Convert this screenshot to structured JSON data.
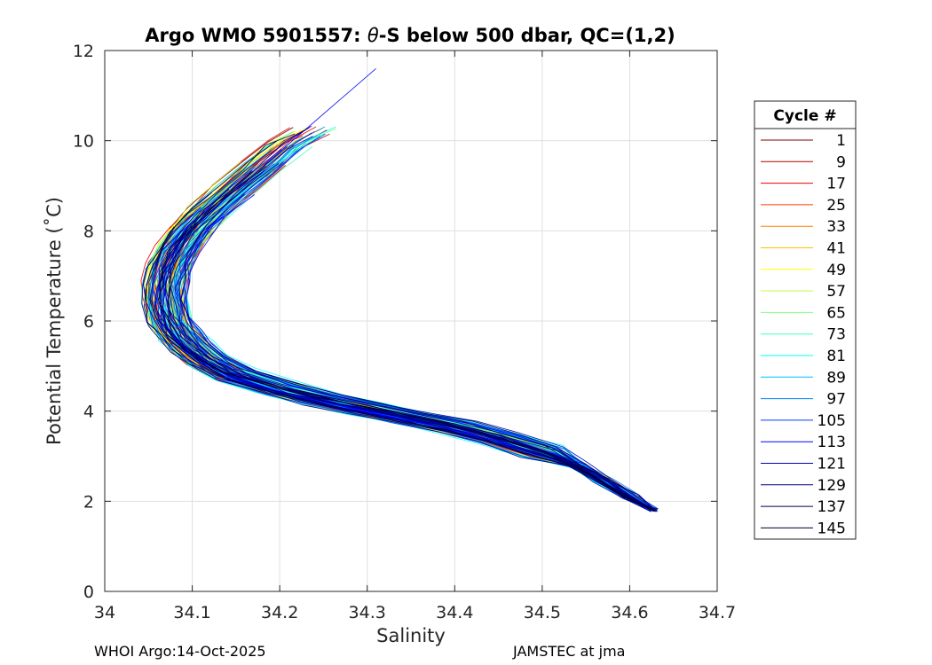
{
  "chart_data": {
    "type": "line",
    "title_prefix": "Argo WMO 5901557: ",
    "title_theta": "θ",
    "title_suffix": "-S below 500 dbar,  QC=(1,2)",
    "xlabel": "Salinity",
    "ylabel": "Potential Temperature (˚C)",
    "xlim": [
      34.0,
      34.7
    ],
    "ylim": [
      0,
      12
    ],
    "xticks": [
      "34",
      "34.1",
      "34.2",
      "34.3",
      "34.4",
      "34.5",
      "34.6",
      "34.7"
    ],
    "xtick_values": [
      34.0,
      34.1,
      34.2,
      34.3,
      34.4,
      34.5,
      34.6,
      34.7
    ],
    "yticks": [
      "0",
      "2",
      "4",
      "6",
      "8",
      "10",
      "12"
    ],
    "ytick_values": [
      0,
      2,
      4,
      6,
      8,
      10,
      12
    ],
    "grid": true,
    "legend_position": "right-outside",
    "legend_title": "Cycle #",
    "colormap": [
      "#800000",
      "#b40000",
      "#e60000",
      "#ff3a00",
      "#ff7f00",
      "#ffbf00",
      "#ffff00",
      "#bfff40",
      "#7fff7f",
      "#40ffbf",
      "#00ffff",
      "#00bfff",
      "#007fff",
      "#0040ff",
      "#0000ff",
      "#0000c0",
      "#000080",
      "#000050",
      "#000030"
    ],
    "series": [
      {
        "name": "1"
      },
      {
        "name": "9"
      },
      {
        "name": "17"
      },
      {
        "name": "25"
      },
      {
        "name": "33"
      },
      {
        "name": "41"
      },
      {
        "name": "49"
      },
      {
        "name": "57"
      },
      {
        "name": "65"
      },
      {
        "name": "73"
      },
      {
        "name": "81"
      },
      {
        "name": "89"
      },
      {
        "name": "97"
      },
      {
        "name": "105"
      },
      {
        "name": "113"
      },
      {
        "name": "121"
      },
      {
        "name": "129"
      },
      {
        "name": "137"
      },
      {
        "name": "145"
      }
    ],
    "base_profile": {
      "salinity": [
        34.628,
        34.6,
        34.57,
        34.54,
        34.5,
        34.45,
        34.4,
        34.35,
        34.3,
        34.25,
        34.2,
        34.15,
        34.12,
        34.1,
        34.085,
        34.075,
        34.07,
        34.07,
        34.075,
        34.085,
        34.1,
        34.12,
        34.15,
        34.18,
        34.21,
        34.24
      ],
      "theta": [
        1.8,
        2.1,
        2.45,
        2.8,
        3.1,
        3.4,
        3.65,
        3.85,
        4.05,
        4.25,
        4.5,
        4.8,
        5.1,
        5.4,
        5.7,
        6.0,
        6.4,
        6.8,
        7.2,
        7.6,
        8.0,
        8.4,
        8.9,
        9.4,
        9.9,
        10.2
      ]
    },
    "spread": {
      "cycles": 145,
      "salinity_jitter": 0.025,
      "warm_tail_max": [
        34.31,
        11.6
      ]
    }
  },
  "footer": {
    "left": "WHOI Argo:14-Oct-2025",
    "right": "JAMSTEC at jma"
  }
}
